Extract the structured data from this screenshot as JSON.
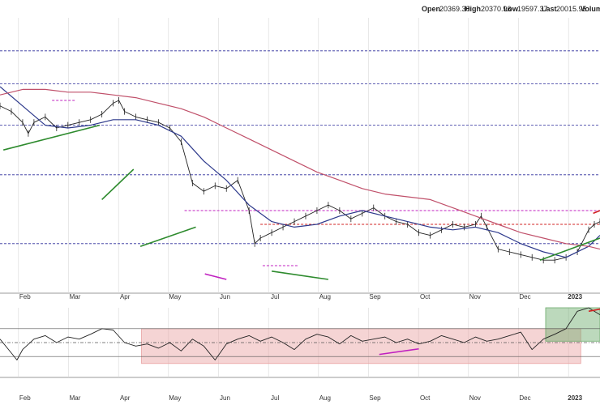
{
  "header": {
    "open_label": "Open",
    "open_value": "20369.30",
    "high_label": "High",
    "high_value": "20370.96",
    "low_label": "Low",
    "low_value": "19597.37",
    "last_label": "Last",
    "last_value": "20015.95",
    "volume_label": "Volum"
  },
  "colors": {
    "price": "#222222",
    "ma_short": "#2e3a8c",
    "ma_long": "#c0506a",
    "support_trend": "#2e8b2e",
    "divergence": "#c020c0",
    "resistance": "#d02020",
    "h_level": "#2a2a9a",
    "neg_zone": "#e8a0a0",
    "pos_zone": "#6aaa6a"
  },
  "chart_data": [
    {
      "type": "line",
      "panel": "price",
      "x_tick_labels": [
        "Feb",
        "Mar",
        "Apr",
        "May",
        "Jun",
        "Jul",
        "Aug",
        "Sep",
        "Oct",
        "Nov",
        "Dec",
        "2023"
      ],
      "x_range": [
        0,
        53
      ],
      "ylim": [
        0,
        100
      ],
      "series": [
        {
          "role": "price",
          "x": [
            0,
            1,
            2,
            2.5,
            3,
            4,
            5,
            6,
            7,
            8,
            9,
            10,
            10.5,
            11,
            12,
            13,
            14,
            15,
            16,
            17,
            18,
            19,
            20,
            21,
            22,
            22.5,
            23,
            24,
            25,
            26,
            27,
            28,
            29,
            30,
            31,
            32,
            33,
            34,
            35,
            36,
            37,
            38,
            39,
            40,
            41,
            42,
            42.5,
            43,
            44,
            45,
            46,
            47,
            48,
            49,
            50,
            51,
            52,
            52.5,
            53
          ],
          "y": [
            68,
            66,
            62,
            58,
            62,
            64,
            60,
            61,
            62,
            63,
            65,
            69,
            70,
            66,
            64,
            63,
            62,
            60,
            55,
            40,
            37,
            39,
            38,
            41,
            30,
            18,
            20,
            22,
            24,
            26,
            28,
            30,
            32,
            30,
            27,
            29,
            31,
            28,
            26,
            25,
            22,
            21,
            23,
            25,
            24,
            25,
            28,
            24,
            16,
            15,
            14,
            13,
            12,
            12,
            13,
            15,
            23,
            25,
            26
          ]
        },
        {
          "role": "ma_short",
          "x": [
            0,
            2,
            4,
            6,
            8,
            10,
            12,
            14,
            16,
            18,
            20,
            22,
            24,
            26,
            28,
            30,
            32,
            34,
            36,
            38,
            40,
            42,
            44,
            46,
            48,
            50,
            52,
            53
          ],
          "y": [
            75,
            68,
            61,
            60,
            61,
            63,
            63,
            61,
            57,
            48,
            41,
            32,
            26,
            24,
            25,
            28,
            30,
            28,
            26,
            24,
            23,
            24,
            22,
            18,
            15,
            13,
            17,
            21
          ]
        },
        {
          "role": "ma_long",
          "x": [
            0,
            2,
            4,
            6,
            8,
            10,
            12,
            14,
            16,
            18,
            20,
            22,
            24,
            26,
            28,
            30,
            32,
            34,
            36,
            38,
            40,
            42,
            44,
            46,
            48,
            50,
            52,
            53
          ],
          "y": [
            72,
            74,
            74,
            73,
            73,
            72,
            71,
            69,
            67,
            64,
            60,
            56,
            52,
            48,
            44,
            41,
            38,
            36,
            35,
            34,
            31,
            28,
            25,
            22,
            20,
            18,
            17,
            16
          ]
        }
      ],
      "horizontal_levels": [
        88,
        76,
        61,
        43,
        18
      ],
      "trendlines": [
        {
          "role": "support_trend",
          "x": [
            0.3,
            8.8
          ],
          "y": [
            52,
            61
          ]
        },
        {
          "role": "support_trend",
          "x": [
            9,
            11.8
          ],
          "y": [
            34,
            45
          ]
        },
        {
          "role": "support_trend",
          "x": [
            12.4,
            17.3
          ],
          "y": [
            17,
            24
          ]
        },
        {
          "role": "support_trend",
          "x": [
            24,
            29
          ],
          "y": [
            8,
            5
          ]
        },
        {
          "role": "support_trend",
          "x": [
            47.7,
            53
          ],
          "y": [
            12,
            20
          ]
        },
        {
          "role": "divergence",
          "x": [
            18.1,
            20
          ],
          "y": [
            7,
            5
          ]
        },
        {
          "role": "resistance",
          "x": [
            52.4,
            53
          ],
          "y": [
            29,
            30
          ]
        }
      ],
      "resistance_levels": [
        {
          "role": "resistance",
          "y": 25,
          "x": [
            23,
            53
          ]
        },
        {
          "role": "divergence",
          "y": 30,
          "x": [
            16.3,
            53
          ]
        },
        {
          "role": "divergence",
          "y": 70,
          "x": [
            4.6,
            6.6
          ]
        },
        {
          "role": "divergence",
          "y": 10,
          "x": [
            23.2,
            26.3
          ]
        }
      ]
    },
    {
      "type": "line",
      "panel": "indicator",
      "x_tick_labels": [
        "Feb",
        "Mar",
        "Apr",
        "May",
        "Jun",
        "Jul",
        "Aug",
        "Sep",
        "Oct",
        "Nov",
        "Dec",
        "2023"
      ],
      "x_range": [
        0,
        53
      ],
      "ylim": [
        0,
        100
      ],
      "reference_levels": [
        70,
        50,
        30
      ],
      "series": [
        {
          "role": "price",
          "x": [
            0,
            1,
            1.5,
            2,
            3,
            4,
            5,
            6,
            7,
            8,
            9,
            10,
            11,
            12,
            13,
            14,
            15,
            16,
            17,
            18,
            19,
            20,
            21,
            22,
            23,
            24,
            25,
            26,
            27,
            28,
            29,
            30,
            31,
            32,
            33,
            34,
            35,
            36,
            37,
            38,
            39,
            40,
            41,
            42,
            43,
            44,
            45,
            46,
            47,
            48,
            49,
            50,
            51,
            52,
            53
          ],
          "y": [
            55,
            35,
            25,
            40,
            55,
            60,
            50,
            58,
            55,
            62,
            70,
            68,
            50,
            45,
            48,
            42,
            50,
            38,
            55,
            45,
            25,
            48,
            55,
            60,
            52,
            58,
            50,
            40,
            55,
            62,
            58,
            48,
            60,
            52,
            55,
            58,
            50,
            55,
            48,
            52,
            60,
            55,
            50,
            58,
            52,
            55,
            60,
            65,
            40,
            55,
            62,
            70,
            95,
            100,
            90
          ]
        }
      ],
      "zones": [
        {
          "role": "neg_zone",
          "x": [
            12.5,
            51.3
          ],
          "y": [
            20,
            70
          ]
        },
        {
          "role": "pos_zone",
          "x": [
            48.2,
            53
          ],
          "y": [
            52,
            100
          ]
        }
      ],
      "trendlines": [
        {
          "role": "divergence",
          "x": [
            33.5,
            37
          ],
          "y": [
            33,
            41
          ]
        },
        {
          "role": "resistance",
          "x": [
            52,
            53
          ],
          "y": [
            95,
            98
          ]
        }
      ]
    }
  ]
}
